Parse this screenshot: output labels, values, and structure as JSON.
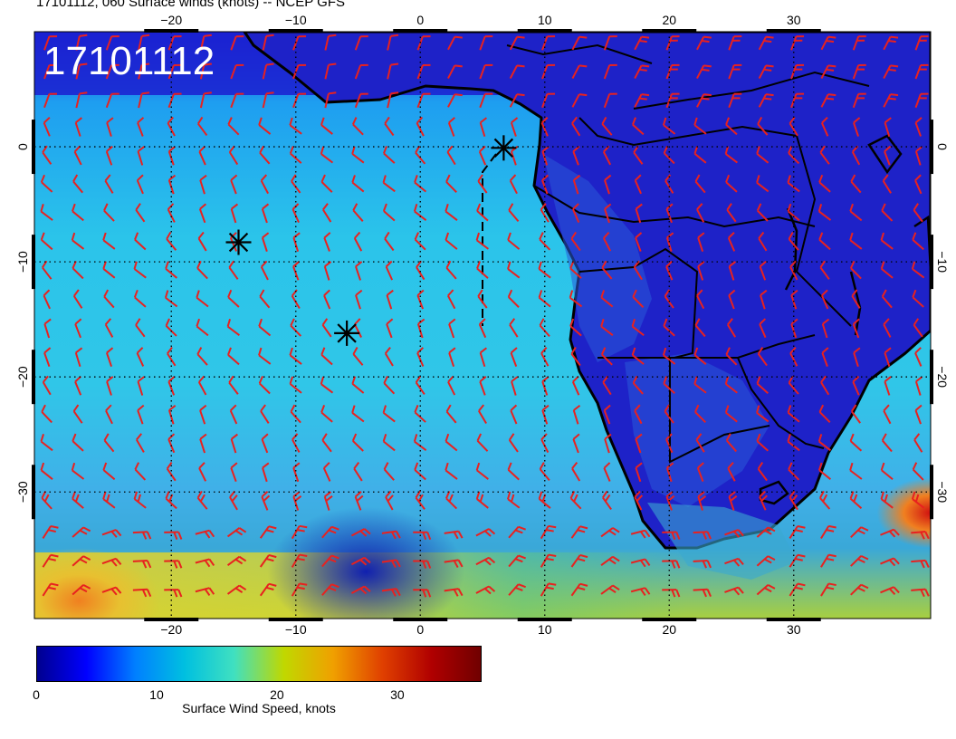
{
  "title": "17101112, 060 Surface winds (knots) -- NCEP GFS",
  "stamp": "17101112",
  "map": {
    "lon_range": [
      -31,
      41
    ],
    "lat_range": [
      -41,
      10
    ],
    "lon_ticks": [
      -20,
      -10,
      0,
      10,
      20,
      30
    ],
    "lat_ticks": [
      0,
      -10,
      -20,
      -30
    ],
    "lon_tick_labels": [
      "−20",
      "−10",
      "0",
      "10",
      "20",
      "30"
    ],
    "lat_tick_labels": [
      "0",
      "−10",
      "−20",
      "−30"
    ],
    "gridlines": "dotted",
    "wind_barb_color": "#e8211f",
    "markers": [
      {
        "lon": 6.7,
        "lat": -0.1
      },
      {
        "lon": -14.6,
        "lat": -8.3
      },
      {
        "lon": -5.9,
        "lat": -16.2
      }
    ]
  },
  "colorbar": {
    "label": "Surface Wind Speed, knots",
    "ticks": [
      "0",
      "10",
      "20",
      "30"
    ],
    "tick_values": [
      0,
      10,
      20,
      30
    ],
    "max": 37,
    "colormap": [
      "#00008f",
      "#0000ff",
      "#0080ff",
      "#00c0e0",
      "#40e0c0",
      "#c0d800",
      "#f0a000",
      "#e04000",
      "#b00000",
      "#700000"
    ]
  }
}
